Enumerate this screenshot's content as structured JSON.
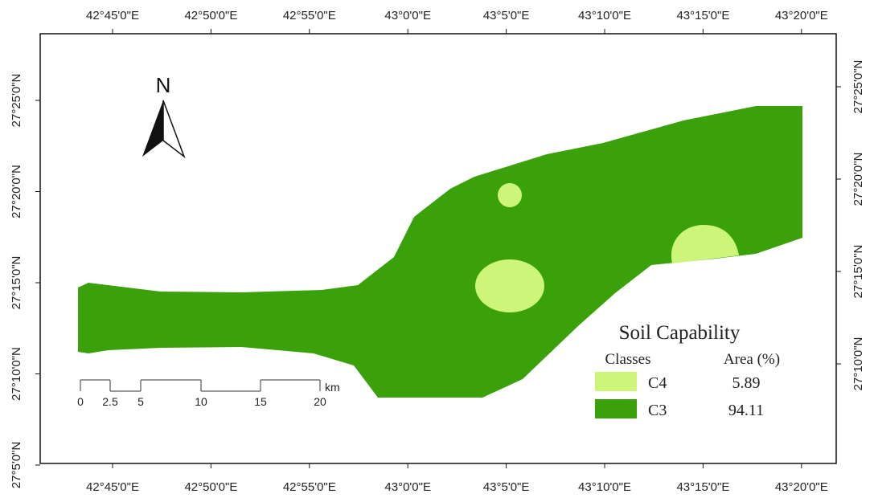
{
  "map": {
    "top_labels": [
      "42°45'0\"E",
      "42°50'0\"E",
      "42°55'0\"E",
      "43°0'0\"E",
      "43°5'0\"E",
      "43°10'0\"E",
      "43°15'0\"E",
      "43°20'0\"E"
    ],
    "bottom_labels": [
      "42°45'0\"E",
      "42°50'0\"E",
      "42°55'0\"E",
      "43°0'0\"E",
      "43°5'0\"E",
      "43°10'0\"E",
      "43°15'0\"E",
      "43°20'0\"E"
    ],
    "left_labels": [
      "27°25'0\"N",
      "27°20'0\"N",
      "27°15'0\"N",
      "27°10'0\"N",
      "27°5'0\"N"
    ],
    "right_labels": [
      "27°25'0\"N",
      "27°20'0\"N",
      "27°15'0\"N",
      "27°10'0\"N"
    ],
    "north": "N",
    "scale": {
      "labels": [
        "0",
        "2.5",
        "5",
        "10",
        "15",
        "20"
      ],
      "unit": "km"
    },
    "legend": {
      "title": "Soil Capability",
      "class_header": "Classes",
      "area_header": "Area (%)",
      "items": [
        {
          "class": "C4",
          "area": 5.89
        },
        {
          "class": "C3",
          "area": 94.11
        }
      ]
    }
  }
}
